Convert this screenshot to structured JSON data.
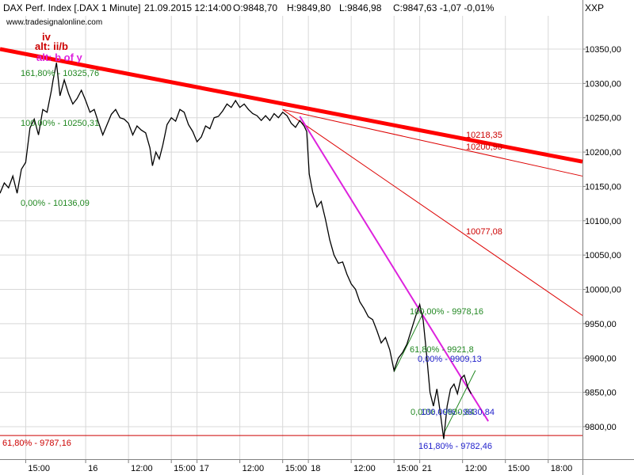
{
  "header": {
    "instrument": "DAX Perf. Index [.DAX  1 Minute]",
    "datetime": "21.09.2015 12:14:00",
    "open": "O:9848,70",
    "high": "H:9849,80",
    "low": "L:9846,98",
    "close": "C:9847,63 -1,07 -0,01%",
    "close_color": "#ff0000",
    "watermark": "www.tradesignalonline.com",
    "right_label": "XXP"
  },
  "colors": {
    "price": "#000000",
    "trend_thick": "#ff0000",
    "trend_thin": "#dd0000",
    "magenta_trend": "#dd22dd",
    "fib_green": "#228822",
    "fib_blue": "#2222cc",
    "fib_red": "#cc0000",
    "grid": "#d8d8d8"
  },
  "chart_data": {
    "type": "line",
    "title": "DAX Perf. Index [.DAX  1 Minute]",
    "xlabel": "",
    "ylabel": "",
    "ylim": [
      9770,
      10390
    ],
    "y_ticks": [
      "9800,00",
      "9850,00",
      "9900,00",
      "9950,00",
      "10000,00",
      "10050,00",
      "10100,00",
      "10150,00",
      "10200,00",
      "10250,00",
      "10300,00",
      "10350,00"
    ],
    "y_tick_values": [
      9800,
      9850,
      9900,
      9950,
      10000,
      10050,
      10100,
      10150,
      10200,
      10250,
      10300,
      10350
    ],
    "x_ticks": [
      {
        "label": "15:00",
        "t": 0.3
      },
      {
        "label": "16",
        "t": 1.0
      },
      {
        "label": "12:00",
        "t": 1.5
      },
      {
        "label": "15:00",
        "t": 2.0
      },
      {
        "label": "17",
        "t": 2.3
      },
      {
        "label": "12:00",
        "t": 2.8
      },
      {
        "label": "15:00",
        "t": 3.3
      },
      {
        "label": "18",
        "t": 3.6
      },
      {
        "label": "12:00",
        "t": 4.1
      },
      {
        "label": "15:00",
        "t": 4.6
      },
      {
        "label": "21",
        "t": 4.9
      },
      {
        "label": "12:00",
        "t": 5.4
      },
      {
        "label": "15:00",
        "t": 5.9
      },
      {
        "label": "18:00",
        "t": 6.4
      }
    ],
    "xlim": [
      0,
      6.8
    ],
    "series": [
      {
        "values": [
          [
            0.0,
            10140
          ],
          [
            0.05,
            10155
          ],
          [
            0.1,
            10148
          ],
          [
            0.15,
            10165
          ],
          [
            0.2,
            10140
          ],
          [
            0.25,
            10175
          ],
          [
            0.3,
            10185
          ],
          [
            0.35,
            10235
          ],
          [
            0.4,
            10248
          ],
          [
            0.45,
            10225
          ],
          [
            0.5,
            10262
          ],
          [
            0.55,
            10258
          ],
          [
            0.6,
            10290
          ],
          [
            0.62,
            10305
          ],
          [
            0.66,
            10330
          ],
          [
            0.7,
            10282
          ],
          [
            0.75,
            10305
          ],
          [
            0.8,
            10285
          ],
          [
            0.85,
            10270
          ],
          [
            0.9,
            10278
          ],
          [
            0.95,
            10290
          ],
          [
            1.0,
            10275
          ],
          [
            1.05,
            10258
          ],
          [
            1.1,
            10262
          ],
          [
            1.15,
            10243
          ],
          [
            1.2,
            10225
          ],
          [
            1.25,
            10240
          ],
          [
            1.3,
            10255
          ],
          [
            1.35,
            10262
          ],
          [
            1.4,
            10250
          ],
          [
            1.45,
            10248
          ],
          [
            1.5,
            10242
          ],
          [
            1.55,
            10225
          ],
          [
            1.6,
            10238
          ],
          [
            1.65,
            10232
          ],
          [
            1.7,
            10228
          ],
          [
            1.75,
            10206
          ],
          [
            1.78,
            10180
          ],
          [
            1.82,
            10200
          ],
          [
            1.86,
            10190
          ],
          [
            1.9,
            10210
          ],
          [
            1.95,
            10240
          ],
          [
            2.0,
            10250
          ],
          [
            2.05,
            10245
          ],
          [
            2.1,
            10262
          ],
          [
            2.15,
            10258
          ],
          [
            2.2,
            10240
          ],
          [
            2.25,
            10230
          ],
          [
            2.3,
            10215
          ],
          [
            2.35,
            10222
          ],
          [
            2.4,
            10238
          ],
          [
            2.45,
            10234
          ],
          [
            2.5,
            10250
          ],
          [
            2.55,
            10252
          ],
          [
            2.6,
            10260
          ],
          [
            2.65,
            10270
          ],
          [
            2.7,
            10265
          ],
          [
            2.75,
            10275
          ],
          [
            2.8,
            10265
          ],
          [
            2.85,
            10270
          ],
          [
            2.9,
            10262
          ],
          [
            2.95,
            10256
          ],
          [
            3.0,
            10253
          ],
          [
            3.05,
            10246
          ],
          [
            3.1,
            10253
          ],
          [
            3.15,
            10246
          ],
          [
            3.2,
            10256
          ],
          [
            3.25,
            10250
          ],
          [
            3.3,
            10258
          ],
          [
            3.35,
            10253
          ],
          [
            3.4,
            10242
          ],
          [
            3.45,
            10236
          ],
          [
            3.5,
            10246
          ],
          [
            3.55,
            10238
          ],
          [
            3.58,
            10230
          ],
          [
            3.61,
            10168
          ],
          [
            3.65,
            10142
          ],
          [
            3.7,
            10120
          ],
          [
            3.75,
            10128
          ],
          [
            3.8,
            10102
          ],
          [
            3.85,
            10072
          ],
          [
            3.9,
            10050
          ],
          [
            3.95,
            10038
          ],
          [
            4.0,
            10040
          ],
          [
            4.05,
            10022
          ],
          [
            4.1,
            10008
          ],
          [
            4.15,
            10000
          ],
          [
            4.2,
            9982
          ],
          [
            4.25,
            9972
          ],
          [
            4.3,
            9960
          ],
          [
            4.35,
            9956
          ],
          [
            4.4,
            9940
          ],
          [
            4.45,
            9922
          ],
          [
            4.5,
            9930
          ],
          [
            4.55,
            9912
          ],
          [
            4.6,
            9882
          ],
          [
            4.65,
            9900
          ],
          [
            4.7,
            9908
          ],
          [
            4.75,
            9920
          ],
          [
            4.8,
            9940
          ],
          [
            4.85,
            9960
          ],
          [
            4.9,
            9978
          ],
          [
            4.94,
            9955
          ],
          [
            4.98,
            9905
          ],
          [
            5.02,
            9850
          ],
          [
            5.06,
            9830
          ],
          [
            5.1,
            9855
          ],
          [
            5.14,
            9820
          ],
          [
            5.18,
            9782
          ],
          [
            5.22,
            9830
          ],
          [
            5.26,
            9855
          ],
          [
            5.3,
            9862
          ],
          [
            5.34,
            9848
          ],
          [
            5.38,
            9870
          ],
          [
            5.42,
            9875
          ],
          [
            5.46,
            9858
          ],
          [
            5.5,
            9848
          ]
        ]
      }
    ],
    "trend_lines": [
      {
        "kind": "thick",
        "from": [
          0.0,
          10350
        ],
        "to": [
          6.8,
          10186
        ]
      },
      {
        "kind": "thin",
        "from": [
          3.3,
          10262
        ],
        "to": [
          6.8,
          10165
        ]
      },
      {
        "kind": "thin",
        "from": [
          3.3,
          10262
        ],
        "to": [
          6.8,
          9962
        ]
      },
      {
        "kind": "magenta",
        "from": [
          3.5,
          10252
        ],
        "to": [
          5.7,
          9808
        ]
      },
      {
        "kind": "green",
        "from": [
          4.6,
          9880
        ],
        "to": [
          4.95,
          9968
        ]
      },
      {
        "kind": "green",
        "from": [
          5.18,
          9790
        ],
        "to": [
          5.55,
          9882
        ]
      }
    ],
    "annotations": {
      "wave_iv": "iv",
      "wave_alt_iib": "alt: ii/b",
      "wave_alt_bofy": "alt: b of y",
      "fib_161_top": "161,80% - 10325,76",
      "fib_100_top": "100,00% - 10250,31",
      "fib_0_top": "0,00% - 10136,09",
      "proj_1": "10218,35",
      "proj_2": "10200,98",
      "proj_3": "10077,08",
      "fib_100_mid": "100,00% - 9978,16",
      "fib_618_mid": "61,80% - 9921,8",
      "fib_0_blue": "0,00% - 9909,13",
      "fib_0_green_low": "0,00% - 9830,84",
      "fib_100_blue_low": "100,00% - 9830,84",
      "fib_1618_blue": "161,80% - 9782,46",
      "fib_618_red": "61,80% - 9787,16"
    },
    "fib_618_level": 9787.16,
    "grid": true
  }
}
